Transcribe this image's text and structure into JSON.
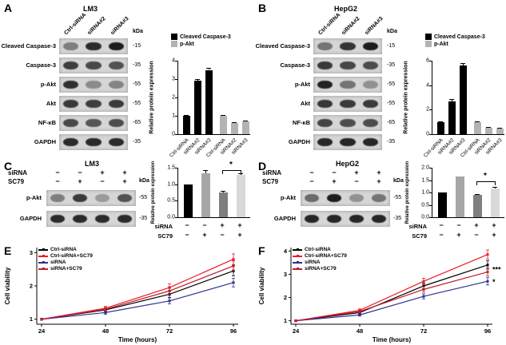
{
  "panels": {
    "A": {
      "label": "A",
      "title": "LM3"
    },
    "B": {
      "label": "B",
      "title": "HepG2"
    },
    "C": {
      "label": "C",
      "title": "LM3"
    },
    "D": {
      "label": "D",
      "title": "HepG2"
    },
    "E": {
      "label": "E"
    },
    "F": {
      "label": "F"
    }
  },
  "blots": {
    "kda_header": "kDa",
    "A": {
      "lanes": [
        "Ctrl-siRNA",
        "siRNA#2",
        "siRNA#3"
      ],
      "rows": [
        {
          "label": "Cleaved Caspase-3",
          "kda": "-15",
          "bands": [
            0.45,
            0.88,
            0.95
          ]
        },
        {
          "label": "Caspase-3",
          "kda": "-35",
          "bands": [
            0.78,
            0.72,
            0.68
          ]
        },
        {
          "label": "p-Akt",
          "kda": "-55",
          "bands": [
            0.85,
            0.38,
            0.42
          ]
        },
        {
          "label": "Akt",
          "kda": "-55",
          "bands": [
            0.8,
            0.78,
            0.8
          ]
        },
        {
          "label": "NF-κB",
          "kda": "-65",
          "bands": [
            0.72,
            0.66,
            0.7
          ]
        },
        {
          "label": "GAPDH",
          "kda": "-35",
          "bands": [
            0.88,
            0.88,
            0.88
          ]
        }
      ]
    },
    "B": {
      "lanes": [
        "Ctrl-siRNA",
        "siRNA#2",
        "siRNA#3"
      ],
      "rows": [
        {
          "label": "Cleaved Caspase-3",
          "kda": "-15",
          "bands": [
            0.5,
            0.82,
            0.95
          ]
        },
        {
          "label": "Caspase-3",
          "kda": "-35",
          "bands": [
            0.8,
            0.74,
            0.7
          ]
        },
        {
          "label": "p-Akt",
          "kda": "-55",
          "bands": [
            0.92,
            0.5,
            0.35
          ]
        },
        {
          "label": "Akt",
          "kda": "-55",
          "bands": [
            0.82,
            0.8,
            0.8
          ]
        },
        {
          "label": "NF-κB",
          "kda": "-65",
          "bands": [
            0.75,
            0.7,
            0.7
          ]
        },
        {
          "label": "GAPDH",
          "kda": "-35",
          "bands": [
            0.9,
            0.9,
            0.9
          ]
        }
      ]
    },
    "C": {
      "cond_rows": [
        {
          "name": "siRNA",
          "values": [
            "−",
            "−",
            "+",
            "+"
          ]
        },
        {
          "name": "SC79",
          "values": [
            "−",
            "+",
            "−",
            "+"
          ]
        }
      ],
      "rows": [
        {
          "label": "p-Akt",
          "kda": "-55",
          "bands": [
            0.45,
            0.8,
            0.3,
            0.68
          ]
        },
        {
          "label": "GAPDH",
          "kda": "-35",
          "bands": [
            0.88,
            0.88,
            0.88,
            0.88
          ]
        }
      ]
    },
    "D": {
      "cond_rows": [
        {
          "name": "siRNA",
          "values": [
            "−",
            "−",
            "+",
            "+"
          ]
        },
        {
          "name": "SC79",
          "values": [
            "−",
            "+",
            "−",
            "+"
          ]
        }
      ],
      "rows": [
        {
          "label": "p-Akt",
          "kda": "-55",
          "bands": [
            0.55,
            0.95,
            0.35,
            0.5
          ]
        },
        {
          "label": "GAPDH",
          "kda": "-35",
          "bands": [
            0.9,
            0.9,
            0.9,
            0.9
          ]
        }
      ]
    }
  },
  "chart_data": [
    {
      "id": "A-bar",
      "type": "bar",
      "ylabel": "Relative protein expression",
      "ylim": [
        0,
        4
      ],
      "yticks": [
        0,
        1,
        2,
        3,
        4
      ],
      "legend": [
        {
          "label": "Cleaved Caspase-3",
          "color": "#000000"
        },
        {
          "label": "p-Akt",
          "color": "#b3b3b3"
        }
      ],
      "categories": [
        "Ctrl-siRNA",
        "siRNA#2",
        "siRNA#3",
        "Ctrl-siRNA",
        "siRNA#2",
        "siRNA#3"
      ],
      "values": [
        1.0,
        2.9,
        3.5,
        1.0,
        0.62,
        0.68
      ],
      "errors": [
        0.05,
        0.1,
        0.12,
        0.04,
        0.04,
        0.05
      ],
      "colors": [
        "#000000",
        "#000000",
        "#000000",
        "#b3b3b3",
        "#b3b3b3",
        "#b3b3b3"
      ]
    },
    {
      "id": "B-bar",
      "type": "bar",
      "ylabel": "Relative protein expression",
      "ylim": [
        0,
        6
      ],
      "yticks": [
        0,
        2,
        4,
        6
      ],
      "legend": [
        {
          "label": "Cleaved Caspase-3",
          "color": "#000000"
        },
        {
          "label": "p-Akt",
          "color": "#b3b3b3"
        }
      ],
      "categories": [
        "Ctrl-siRNA",
        "siRNA#2",
        "siRNA#3",
        "Ctrl-siRNA",
        "siRNA#2",
        "siRNA#3"
      ],
      "values": [
        1.0,
        2.7,
        5.6,
        1.0,
        0.52,
        0.45
      ],
      "errors": [
        0.05,
        0.15,
        0.2,
        0.04,
        0.04,
        0.04
      ],
      "colors": [
        "#000000",
        "#000000",
        "#000000",
        "#b3b3b3",
        "#b3b3b3",
        "#b3b3b3"
      ]
    },
    {
      "id": "C-bar",
      "type": "bar",
      "ylabel": "Relative protein expression",
      "ylim": [
        0,
        1.5
      ],
      "yticks": [
        0,
        0.5,
        1,
        1.5
      ],
      "ytick_labels": [
        "0.0",
        "0.5",
        "1.0",
        "1.5"
      ],
      "cond_rows": [
        {
          "name": "siRNA",
          "values": [
            "−",
            "−",
            "+",
            "+"
          ]
        },
        {
          "name": "SC79",
          "values": [
            "−",
            "+",
            "−",
            "+"
          ]
        }
      ],
      "values": [
        1.0,
        1.33,
        0.74,
        1.28
      ],
      "errors": [
        0,
        0.1,
        0.07,
        0.05
      ],
      "colors": [
        "#000000",
        "#a6a6a6",
        "#7f7f7f",
        "#d9d9d9"
      ],
      "sig": {
        "from": 2,
        "to": 3,
        "label": "*",
        "y": 1.42
      }
    },
    {
      "id": "D-bar",
      "type": "bar",
      "ylabel": "Relative protein expression",
      "ylim": [
        0,
        2
      ],
      "yticks": [
        0,
        0.5,
        1,
        1.5,
        2
      ],
      "ytick_labels": [
        "0.0",
        "0.5",
        "1.0",
        "1.5",
        "2.0"
      ],
      "cond_rows": [
        {
          "name": "siRNA",
          "values": [
            "−",
            "−",
            "+",
            "+"
          ]
        },
        {
          "name": "SC79",
          "values": [
            "−",
            "+",
            "−",
            "+"
          ]
        }
      ],
      "values": [
        1.0,
        1.65,
        0.9,
        1.16
      ],
      "errors": [
        0,
        0,
        0.05,
        0.06
      ],
      "colors": [
        "#000000",
        "#a6a6a6",
        "#7f7f7f",
        "#d9d9d9"
      ],
      "sig": {
        "from": 2,
        "to": 3,
        "label": "*",
        "y": 1.45
      }
    },
    {
      "id": "E-line",
      "type": "line",
      "xlabel": "Time (hours)",
      "ylabel": "Cell viability",
      "x": [
        24,
        48,
        72,
        96
      ],
      "ylim": [
        0.85,
        3.15
      ],
      "yticks": [
        1,
        2,
        3
      ],
      "series": [
        {
          "name": "Ctrl-siRNA",
          "color": "#000000",
          "values": [
            1.0,
            1.28,
            1.75,
            2.45
          ],
          "errors": [
            0.03,
            0.05,
            0.1,
            0.15
          ]
        },
        {
          "name": "Ctrl-siRNA+SC79",
          "color": "#ec1c24",
          "values": [
            1.0,
            1.33,
            1.95,
            2.8
          ],
          "errors": [
            0.03,
            0.06,
            0.11,
            0.16
          ]
        },
        {
          "name": "siRNA",
          "color": "#2e3192",
          "values": [
            1.0,
            1.2,
            1.55,
            2.1
          ],
          "errors": [
            0.03,
            0.05,
            0.09,
            0.13
          ]
        },
        {
          "name": "siRNA+SC79",
          "color": "#be1e2d",
          "values": [
            1.0,
            1.3,
            1.85,
            2.6
          ],
          "errors": [
            0.03,
            0.05,
            0.1,
            0.15
          ]
        }
      ]
    },
    {
      "id": "F-line",
      "type": "line",
      "xlabel": "Time (hours)",
      "ylabel": "Cell viability",
      "x": [
        24,
        48,
        72,
        96
      ],
      "ylim": [
        0.85,
        4.15
      ],
      "yticks": [
        1,
        2,
        3,
        4
      ],
      "series": [
        {
          "name": "Ctrl-siRNA",
          "color": "#000000",
          "values": [
            1.0,
            1.35,
            2.5,
            3.4
          ],
          "errors": [
            0.03,
            0.06,
            0.12,
            0.18
          ]
        },
        {
          "name": "Ctrl-siRNA+SC79",
          "color": "#ec1c24",
          "values": [
            1.0,
            1.45,
            2.7,
            3.85
          ],
          "errors": [
            0.03,
            0.06,
            0.13,
            0.2
          ]
        },
        {
          "name": "siRNA",
          "color": "#2e3192",
          "values": [
            1.0,
            1.25,
            2.05,
            2.7
          ],
          "errors": [
            0.03,
            0.05,
            0.11,
            0.16
          ]
        },
        {
          "name": "siRNA+SC79",
          "color": "#be1e2d",
          "values": [
            1.0,
            1.4,
            2.35,
            3.1
          ],
          "errors": [
            0.03,
            0.06,
            0.12,
            0.17
          ]
        }
      ],
      "annotations": [
        {
          "text": "***",
          "x": 96,
          "y": 3.2
        },
        {
          "text": "*",
          "x": 96,
          "y": 2.68
        }
      ]
    }
  ]
}
